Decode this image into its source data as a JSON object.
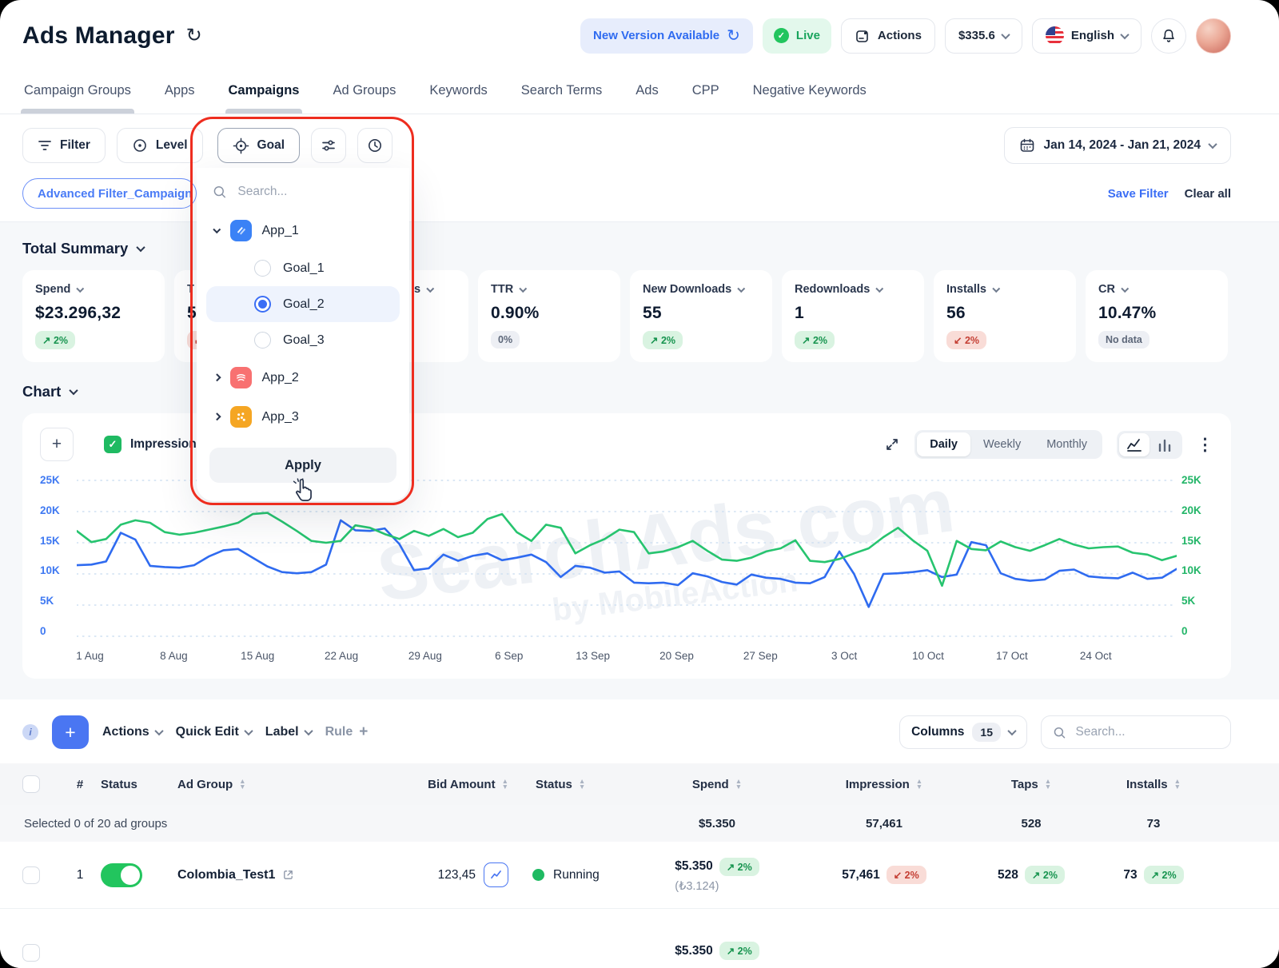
{
  "icons": {
    "refresh": "↻",
    "check": "✓",
    "plus": "+",
    "dots_menu": "⋮",
    "info": "i",
    "sort_up": "▲",
    "sort_down": "▼",
    "hash": "#"
  },
  "colors": {
    "accent_blue": "#2f6bf0",
    "green": "#22c55e",
    "badge_green_bg": "#d9f3e1",
    "badge_red_bg": "#f9dcd7",
    "annotation_red": "#ee2d1f",
    "chart_blue": "#2f6bf0",
    "chart_green": "#27c46f",
    "axis_left": "#3f79f2",
    "axis_right": "#23b568"
  },
  "header": {
    "title": "Ads Manager",
    "new_version_label": "New Version Available",
    "live_label": "Live",
    "actions_label": "Actions",
    "balance": "$335.6",
    "language": "English"
  },
  "tabs": [
    {
      "label": "Campaign Groups"
    },
    {
      "label": "Apps"
    },
    {
      "label": "Campaigns"
    },
    {
      "label": "Ad Groups"
    },
    {
      "label": "Keywords"
    },
    {
      "label": "Search Terms"
    },
    {
      "label": "Ads"
    },
    {
      "label": "CPP"
    },
    {
      "label": "Negative Keywords"
    }
  ],
  "filter_bar": {
    "filter_label": "Filter",
    "level_label": "Level",
    "goal_label": "Goal",
    "date_range": "Jan 14, 2024 - Jan 21, 2024",
    "advanced_chip": "Advanced Filter_Campaign",
    "save_filter": "Save Filter",
    "clear_all": "Clear all"
  },
  "goal_dropdown": {
    "search_placeholder": "Search...",
    "apps": [
      {
        "name": "App_1",
        "expanded": true,
        "goals": [
          {
            "name": "Goal_1",
            "selected": false
          },
          {
            "name": "Goal_2",
            "selected": true
          },
          {
            "name": "Goal_3",
            "selected": false
          }
        ]
      },
      {
        "name": "App_2",
        "expanded": false
      },
      {
        "name": "App_3",
        "expanded": false
      }
    ],
    "apply_label": "Apply"
  },
  "summary": {
    "title": "Total Summary",
    "cards": [
      {
        "label": "Spend",
        "value": "$23.296,32",
        "badge": "↗ 2%",
        "badge_type": "green"
      },
      {
        "label": "T",
        "value": "5",
        "badge": "↙ 2%",
        "badge_type": "red"
      },
      {
        "label": "s",
        "value": "",
        "badge": "",
        "badge_type": ""
      },
      {
        "label": "TTR",
        "value": "0.90%",
        "badge": "0%",
        "badge_type": "gray"
      },
      {
        "label": "New Downloads",
        "value": "55",
        "badge": "↗ 2%",
        "badge_type": "green"
      },
      {
        "label": "Redownloads",
        "value": "1",
        "badge": "↗ 2%",
        "badge_type": "green"
      },
      {
        "label": "Installs",
        "value": "56",
        "badge": "↙ 2%",
        "badge_type": "red"
      },
      {
        "label": "CR",
        "value": "10.47%",
        "badge": "No data",
        "badge_type": "gray"
      }
    ]
  },
  "chart": {
    "title": "Chart",
    "legend_checkbox": "Impressions",
    "range_tabs": [
      {
        "label": "Daily"
      },
      {
        "label": "Weekly"
      },
      {
        "label": "Monthly"
      }
    ],
    "active_range": "Daily",
    "watermark_line1": "SearchAds.com",
    "watermark_line2": "by MobileAction"
  },
  "chart_data": {
    "type": "line",
    "x_tick_labels": [
      "1 Aug",
      "8 Aug",
      "15 Aug",
      "22 Aug",
      "29 Aug",
      "6 Sep",
      "13 Sep",
      "20 Sep",
      "27 Sep",
      "3 Oct",
      "10 Oct",
      "17 Oct",
      "24 Oct"
    ],
    "ylim_k": [
      0,
      25
    ],
    "y_tick_labels_left": [
      "25K",
      "20K",
      "15K",
      "10K",
      "5K",
      "0"
    ],
    "y_tick_labels_right": [
      "25K",
      "20K",
      "15K",
      "10K",
      "5K",
      "0"
    ],
    "grid": "dotted-horizontal",
    "legend_position": "top-left-checkbox",
    "series": [
      {
        "name": "blue_series",
        "axis": "left",
        "color": "#2f6bf0",
        "unit": "K",
        "values": [
          11.4,
          11.5,
          12.0,
          16.6,
          15.5,
          11.3,
          11.1,
          11.0,
          11.4,
          12.8,
          13.8,
          14.0,
          12.6,
          11.2,
          10.3,
          10.1,
          10.3,
          11.5,
          18.6,
          17.0,
          16.9,
          17.3,
          14.8,
          10.6,
          10.9,
          13.1,
          12.1,
          12.9,
          13.3,
          12.2,
          12.6,
          13.1,
          11.9,
          9.5,
          11.3,
          11.0,
          10.2,
          10.4,
          8.6,
          8.5,
          8.6,
          8.2,
          10.1,
          9.6,
          8.7,
          8.3,
          9.9,
          9.4,
          9.2,
          8.6,
          8.5,
          9.5,
          13.6,
          10.0,
          4.7,
          10.0,
          10.1,
          10.3,
          10.6,
          9.5,
          9.9,
          15.1,
          14.6,
          10.1,
          9.2,
          8.9,
          9.1,
          10.5,
          10.7,
          9.6,
          9.4,
          9.3,
          10.2,
          9.2,
          9.4,
          10.8
        ]
      },
      {
        "name": "green_series",
        "axis": "right",
        "color": "#27c46f",
        "unit": "K",
        "values": [
          16.9,
          15.1,
          15.6,
          17.9,
          18.6,
          18.2,
          16.7,
          16.3,
          16.6,
          17.1,
          17.6,
          18.2,
          19.6,
          19.8,
          18.4,
          16.9,
          15.3,
          15.0,
          15.3,
          17.8,
          17.4,
          16.4,
          15.6,
          16.9,
          16.1,
          17.2,
          15.9,
          16.6,
          18.8,
          19.6,
          16.7,
          15.3,
          17.9,
          17.4,
          13.3,
          14.6,
          15.6,
          17.1,
          16.7,
          13.3,
          13.6,
          14.3,
          15.3,
          13.7,
          12.3,
          12.1,
          12.6,
          13.6,
          14.1,
          15.4,
          12.1,
          11.9,
          12.4,
          13.3,
          14.1,
          15.9,
          17.4,
          15.4,
          13.7,
          8.1,
          15.3,
          14.0,
          13.8,
          15.2,
          14.3,
          13.7,
          14.6,
          15.6,
          14.7,
          14.1,
          14.3,
          14.4,
          13.4,
          13.1,
          12.2,
          12.9
        ]
      }
    ]
  },
  "table": {
    "toolbar": {
      "actions_label": "Actions",
      "quick_edit_label": "Quick Edit",
      "label_label": "Label",
      "rule_label": "Rule",
      "columns_label": "Columns",
      "columns_count": "15",
      "search_placeholder": "Search..."
    },
    "headers": [
      {
        "label": "#"
      },
      {
        "label": "Status"
      },
      {
        "label": "Ad Group"
      },
      {
        "label": "Bid Amount"
      },
      {
        "label": "Status"
      },
      {
        "label": "Spend"
      },
      {
        "label": "Impression"
      },
      {
        "label": "Taps"
      },
      {
        "label": "Installs"
      }
    ],
    "selected_text": "Selected 0 of 20 ad groups",
    "totals": {
      "spend": "$5.350",
      "impression": "57,461",
      "taps": "528",
      "installs": "73"
    },
    "rows": [
      {
        "num": "1",
        "name": "Colombia_Test1",
        "bid": "123,45",
        "status": "Running",
        "spend": "$5.350",
        "spend_badge": "↗ 2%",
        "spend_alt": "(₺3.124)",
        "impression": "57,461",
        "impression_badge": "↙ 2%",
        "taps": "528",
        "taps_badge": "↗ 2%",
        "installs": "73",
        "installs_badge": "↗ 2%"
      },
      {
        "spend": "$5.350",
        "spend_badge": "↗ 2%"
      }
    ]
  }
}
